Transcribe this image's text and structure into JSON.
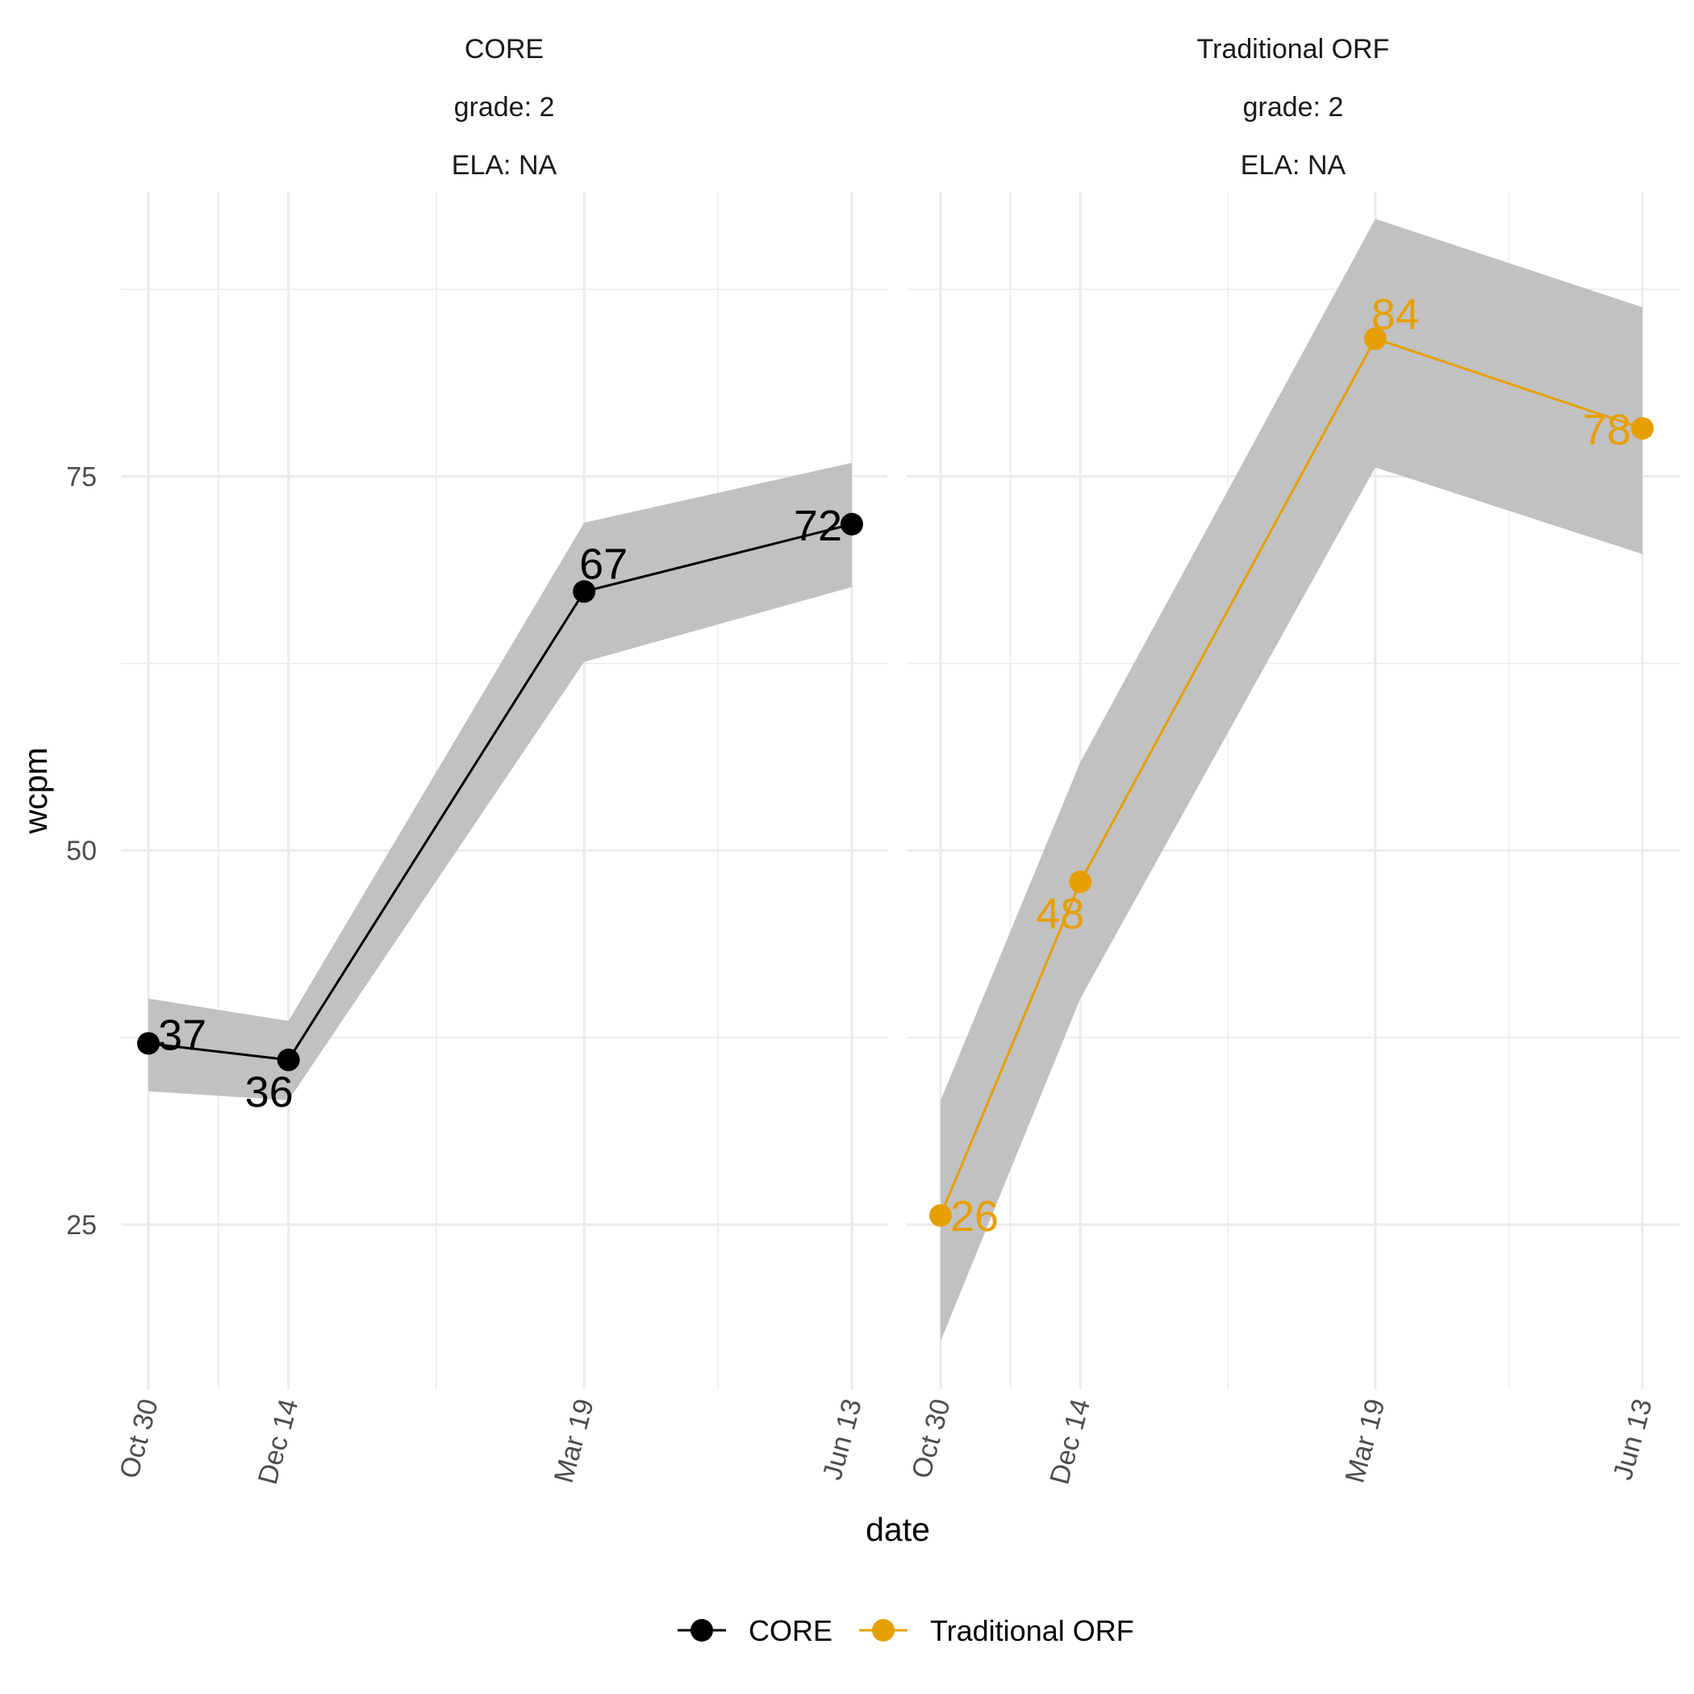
{
  "chart_data": {
    "type": "line",
    "xlabel": "date",
    "ylabel": "wcpm",
    "x_ticks": [
      "Oct 30",
      "Dec 14",
      "Mar 19",
      "Jun 13"
    ],
    "x_tick_dates": [
      "2017-10-30",
      "2017-12-14",
      "2018-03-19",
      "2018-06-13"
    ],
    "y_ticks": [
      25,
      50,
      75
    ],
    "ylim": [
      14,
      94
    ],
    "grid": true,
    "legend_position": "bottom",
    "legend": [
      {
        "label": "CORE",
        "color": "#000000"
      },
      {
        "label": "Traditional ORF",
        "color": "#E69F00"
      }
    ],
    "ribbon_color": "#bebebe",
    "panels": [
      {
        "strip": [
          "CORE",
          "grade: 2",
          "ELA: NA"
        ],
        "series": "CORE",
        "color": "#000000",
        "points": [
          {
            "date": "2017-10-30",
            "wcpm": 37.1,
            "label": "37",
            "lower": 33.9,
            "upper": 40.1
          },
          {
            "date": "2017-12-14",
            "wcpm": 36.0,
            "label": "36",
            "lower": 33.3,
            "upper": 38.6
          },
          {
            "date": "2018-03-19",
            "wcpm": 67.3,
            "label": "67",
            "lower": 62.6,
            "upper": 71.9
          },
          {
            "date": "2018-06-13",
            "wcpm": 71.8,
            "label": "72",
            "lower": 67.6,
            "upper": 75.9
          }
        ]
      },
      {
        "strip": [
          "Traditional ORF",
          "grade: 2",
          "ELA: NA"
        ],
        "series": "Traditional ORF",
        "color": "#E69F00",
        "points": [
          {
            "date": "2017-10-30",
            "wcpm": 25.6,
            "label": "26",
            "lower": 17.2,
            "upper": 33.3
          },
          {
            "date": "2017-12-14",
            "wcpm": 47.9,
            "label": "48",
            "lower": 40.1,
            "upper": 55.9
          },
          {
            "date": "2018-03-19",
            "wcpm": 84.2,
            "label": "84",
            "lower": 75.6,
            "upper": 92.2
          },
          {
            "date": "2018-06-13",
            "wcpm": 78.2,
            "label": "78",
            "lower": 69.8,
            "upper": 86.3
          }
        ]
      }
    ]
  }
}
